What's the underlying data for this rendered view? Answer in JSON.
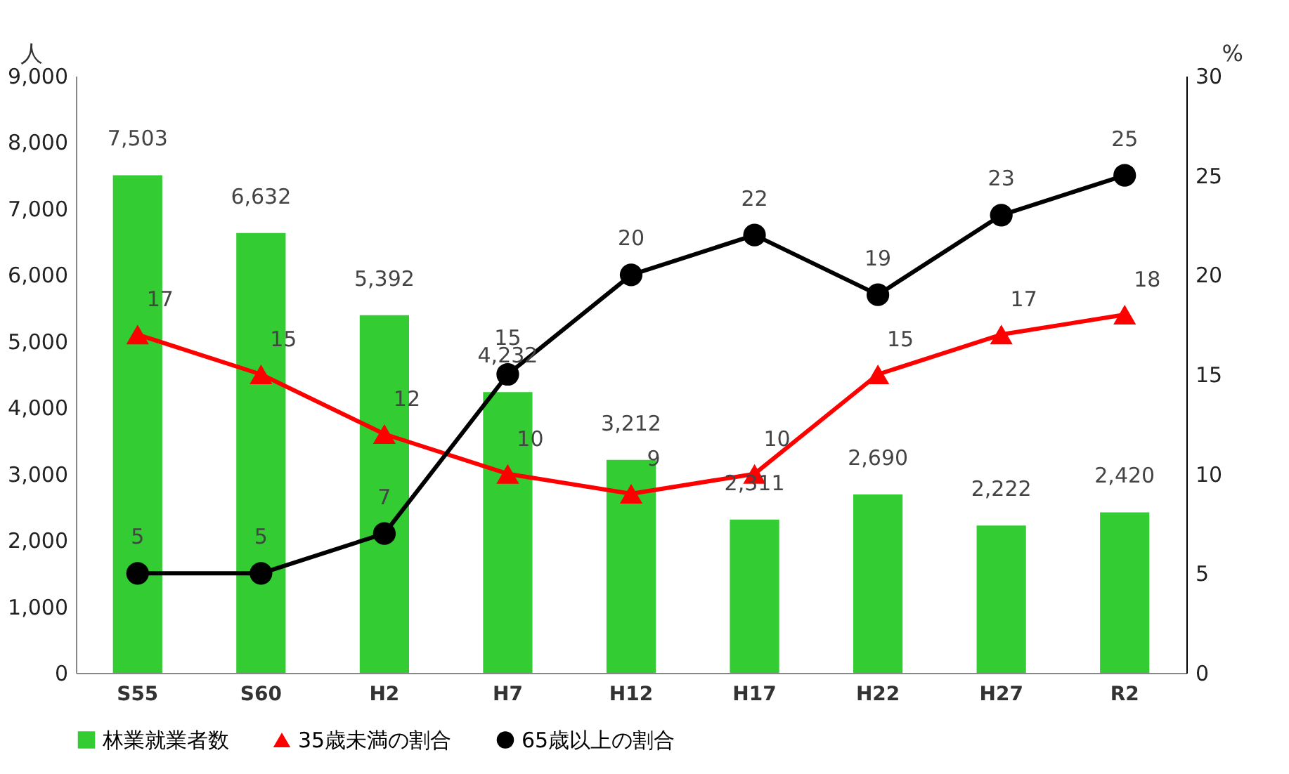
{
  "chart_data": {
    "type": "bar",
    "categories": [
      "S55",
      "S60",
      "H2",
      "H7",
      "H12",
      "H17",
      "H22",
      "H27",
      "R2"
    ],
    "series": [
      {
        "name": "林業就業者数",
        "color": "#33cc33",
        "values": [
          7503,
          6632,
          5392,
          4232,
          3212,
          2311,
          2690,
          2222,
          2420
        ],
        "value_labels": [
          "7,503",
          "6,632",
          "5,392",
          "4,232",
          "3,212",
          "2,311",
          "2,690",
          "2,222",
          "2,420"
        ]
      },
      {
        "name": "35歳未満の割合",
        "type": "line",
        "axis": "y2",
        "marker": "triangle",
        "color": "#ff0000",
        "values": [
          17,
          15,
          12,
          10,
          9,
          10,
          15,
          17,
          18
        ]
      },
      {
        "name": "65歳以上の割合",
        "type": "line",
        "axis": "y2",
        "marker": "circle",
        "color": "#000000",
        "values": [
          5,
          5,
          7,
          15,
          20,
          22,
          19,
          23,
          25
        ]
      }
    ],
    "ylabel": "人",
    "y2label": "%",
    "ylim": [
      0,
      9000
    ],
    "yticks": [
      0,
      {
        "value": 1000,
        "label": "1,000"
      },
      {
        "value": 2000,
        "label": "2,000"
      },
      {
        "value": 3000,
        "label": "3,000"
      },
      {
        "value": 4000,
        "label": "4,000"
      },
      {
        "value": 5000,
        "label": "5,000"
      },
      {
        "value": 6000,
        "label": "6,000"
      },
      {
        "value": 7000,
        "label": "7,000"
      },
      {
        "value": 8000,
        "label": "8,000"
      },
      {
        "value": 9000,
        "label": "9,000"
      }
    ],
    "y2lim": [
      0,
      30
    ],
    "y2ticks": [
      0,
      5,
      10,
      15,
      20,
      25,
      30
    ],
    "legend": "bottom",
    "data_labels": true
  }
}
